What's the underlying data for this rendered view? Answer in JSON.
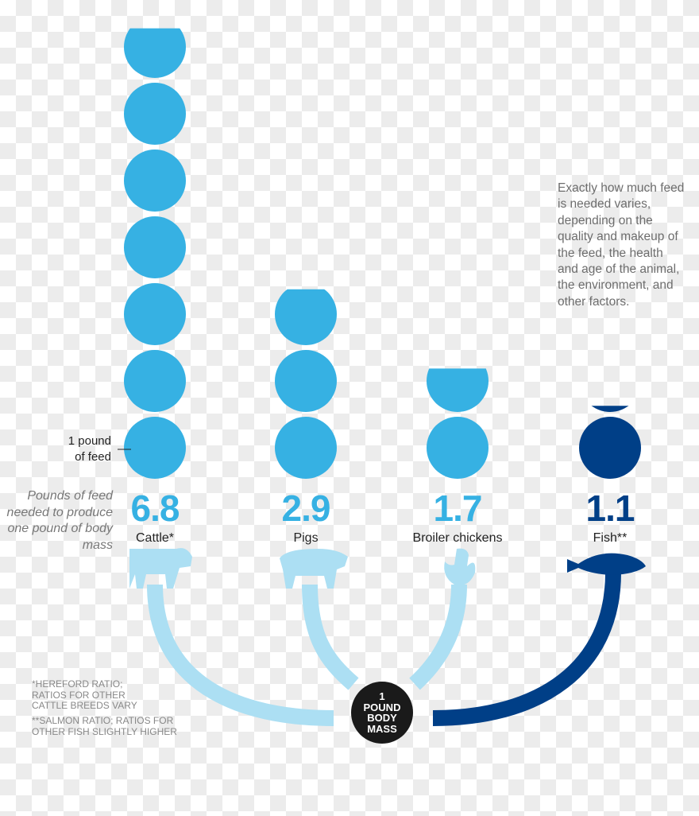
{
  "chart_data": {
    "type": "pictogram",
    "unit_label": "1 pound of feed",
    "ylabel": "Pounds of feed needed to produce one pound of body mass",
    "categories": [
      "Cattle*",
      "Pigs",
      "Broiler chickens",
      "Fish**"
    ],
    "values": [
      6.8,
      2.9,
      1.7,
      1.1
    ],
    "value_labels": [
      "6.8",
      "2.9",
      "1.7",
      "1.1"
    ],
    "colors": [
      "#36b1e3",
      "#36b1e3",
      "#36b1e3",
      "#003f87"
    ],
    "icons": [
      "cow-icon",
      "pig-icon",
      "chicken-icon",
      "fish-icon"
    ],
    "hub_label": [
      "1",
      "POUND",
      "BODY",
      "MASS"
    ]
  },
  "note": "Exactly how much feed is needed varies, depending on the quality and makeup of the feed, the health and age of the animal, the environment, and other factors.",
  "footnotes": [
    "*HEREFORD RATIO; RATIOS FOR OTHER CATTLE BREEDS VARY",
    "**SALMON RATIO; RATIOS FOR OTHER FISH SLIGHTLY HIGHER"
  ],
  "arc_color_light": "#acdff3",
  "arc_color_dark": "#003f87"
}
